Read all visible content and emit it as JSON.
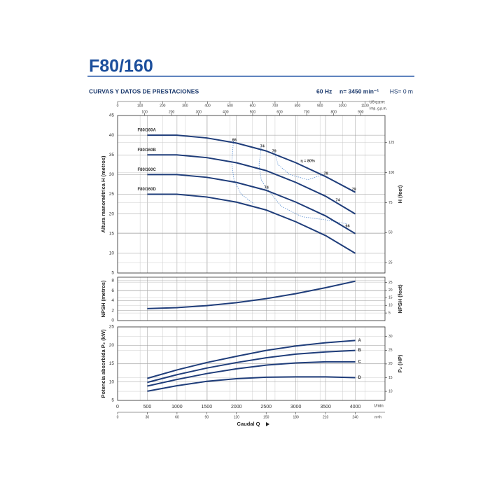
{
  "header": {
    "title": "F80/160",
    "subtitle": "CURVAS Y DATOS DE PRESTACIONES",
    "frequency": "60 Hz",
    "speed": "n= 3450 min⁻¹",
    "suction": "HS= 0 m"
  },
  "chart_data": [
    {
      "type": "line",
      "x": [
        500,
        1000,
        1500,
        2000,
        2500,
        3000,
        3500,
        4000
      ],
      "xlim": [
        0,
        4500
      ],
      "ylabel": "Altura manométrica H (metros)",
      "ylim": [
        5,
        45
      ],
      "yticks": [
        5,
        10,
        15,
        20,
        25,
        30,
        35,
        40,
        45
      ],
      "y2label": "H (feet)",
      "y2lim": [
        16.4,
        147.6
      ],
      "y2ticks": [
        25,
        50,
        75,
        100,
        125
      ],
      "color": "#1f3d7a",
      "grid": true,
      "top_axes": [
        {
          "label": "US g.p.m.",
          "lim": [
            0,
            1188.8
          ],
          "ticks": [
            0,
            100,
            200,
            300,
            400,
            500,
            600,
            700,
            800,
            900,
            1000,
            1100
          ]
        },
        {
          "label": "Imp. g.p.m.",
          "lim": [
            0,
            989.9
          ],
          "ticks": [
            100,
            200,
            300,
            400,
            500,
            600,
            700,
            800,
            900
          ]
        }
      ],
      "series": [
        {
          "name": "F80/160A",
          "values": [
            40,
            40,
            39.3,
            38,
            36,
            33,
            29.5,
            25.5
          ]
        },
        {
          "name": "F80/160B",
          "values": [
            35,
            35,
            34.3,
            33,
            31,
            28,
            24.5,
            20
          ]
        },
        {
          "name": "F80/160C",
          "values": [
            30,
            30,
            29.3,
            28,
            26,
            23,
            19.5,
            15
          ]
        },
        {
          "name": "F80/160D",
          "values": [
            25,
            25,
            24.3,
            23,
            21,
            18,
            14.5,
            10
          ]
        }
      ],
      "iso_color": "#5b8fd0",
      "iso_efficiency": [
        {
          "x": [
            1950,
            1920,
            1960,
            2080,
            2300
          ],
          "y": [
            38.6,
            33,
            28.5,
            25,
            22.5
          ]
        },
        {
          "x": [
            2420,
            2380,
            2420,
            2500,
            2750,
            3100,
            3500,
            3850
          ],
          "y": [
            37.2,
            32.5,
            28.5,
            26.7,
            22,
            19.3,
            18.5,
            17.5
          ]
        },
        {
          "x": [
            2640,
            2700,
            2900,
            3200,
            3500
          ],
          "y": [
            35.9,
            32.5,
            30,
            28.7,
            30.2
          ]
        }
      ],
      "efficiency_labels": [
        {
          "text": "66",
          "x": 1965,
          "y": 38.8
        },
        {
          "text": "74",
          "x": 2435,
          "y": 37.2
        },
        {
          "text": "79",
          "x": 2635,
          "y": 35.9
        },
        {
          "text": "η = 80%",
          "x": 3200,
          "y": 33.4
        },
        {
          "text": "79",
          "x": 3506,
          "y": 30.2
        },
        {
          "text": "79",
          "x": 3976,
          "y": 26.2
        },
        {
          "text": "74",
          "x": 2506,
          "y": 26.7
        },
        {
          "text": "74",
          "x": 3706,
          "y": 23.5
        },
        {
          "text": "66",
          "x": 3871,
          "y": 16.9
        }
      ]
    },
    {
      "type": "line",
      "x": [
        500,
        1000,
        1500,
        2000,
        2500,
        3000,
        3500,
        4000
      ],
      "xlim": [
        0,
        4500
      ],
      "ylabel": "NPSH (metros)",
      "ylim": [
        0,
        8.7
      ],
      "yticks": [
        0,
        2,
        4,
        6,
        8
      ],
      "y2label": "NPSH (feet)",
      "y2lim": [
        0,
        28.5
      ],
      "y2ticks": [
        5,
        10,
        15,
        20,
        25
      ],
      "color": "#1f3d7a",
      "grid": true,
      "series": [
        {
          "values": [
            2.4,
            2.6,
            3.0,
            3.6,
            4.4,
            5.4,
            6.6,
            7.9
          ]
        }
      ]
    },
    {
      "type": "line",
      "x": [
        500,
        1000,
        1500,
        2000,
        2500,
        3000,
        3500,
        4000
      ],
      "xlim": [
        0,
        4500
      ],
      "xlabel": "Caudal Q",
      "xunit": "l/min",
      "xticks": [
        0,
        500,
        1000,
        1500,
        2000,
        2500,
        3000,
        3500,
        4000
      ],
      "x2unit": "m³/h",
      "x2lim": [
        0,
        270
      ],
      "x2ticks": [
        0,
        30,
        60,
        90,
        120,
        150,
        180,
        210,
        240
      ],
      "ylabel": "Potencia absorbida P₂ (kW)",
      "ylim": [
        5,
        25
      ],
      "yticks": [
        5,
        10,
        15,
        20,
        25
      ],
      "y2label": "P₂ (HP)",
      "y2lim": [
        6.7,
        33.5
      ],
      "y2ticks": [
        10,
        15,
        20,
        25,
        30
      ],
      "color": "#1f3d7a",
      "grid": true,
      "series": [
        {
          "name": "A",
          "values": [
            11,
            13.3,
            15.3,
            17,
            18.6,
            19.8,
            20.7,
            21.3
          ]
        },
        {
          "name": "B",
          "values": [
            9.9,
            12,
            13.8,
            15.3,
            16.6,
            17.6,
            18.2,
            18.6
          ]
        },
        {
          "name": "C",
          "values": [
            8.9,
            10.7,
            12.3,
            13.6,
            14.6,
            15.2,
            15.5,
            15.5
          ]
        },
        {
          "name": "D",
          "values": [
            7.5,
            9,
            10.2,
            10.9,
            11.3,
            11.4,
            11.4,
            11.2
          ]
        }
      ]
    }
  ]
}
